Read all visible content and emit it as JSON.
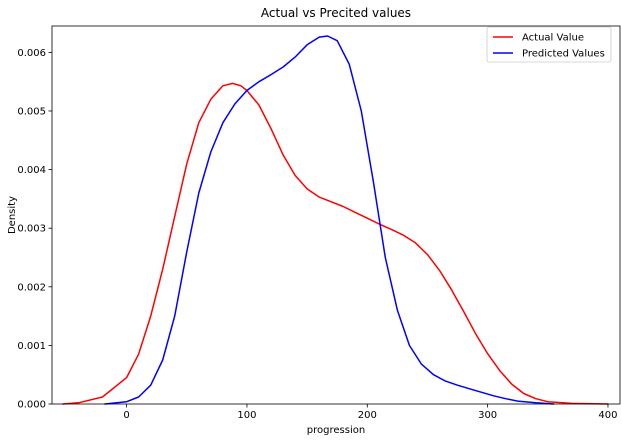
{
  "chart_data": {
    "type": "line",
    "title": "Actual vs Precited values",
    "xlabel": "progression",
    "ylabel": "Density",
    "xlim": [
      -62,
      410
    ],
    "ylim": [
      0,
      0.00645
    ],
    "x_ticks": [
      0,
      100,
      200,
      300,
      400
    ],
    "y_ticks": [
      0.0,
      0.001,
      0.002,
      0.003,
      0.004,
      0.005,
      0.006
    ],
    "y_tick_labels": [
      "0.000",
      "0.001",
      "0.002",
      "0.003",
      "0.004",
      "0.005",
      "0.006"
    ],
    "grid": false,
    "legend_position": "top-right",
    "series": [
      {
        "name": "Actual Value",
        "color": "#ff0000",
        "points": [
          [
            -53,
            0.0
          ],
          [
            -40,
            2e-05
          ],
          [
            -20,
            0.00012
          ],
          [
            0,
            0.00045
          ],
          [
            10,
            0.00085
          ],
          [
            20,
            0.0015
          ],
          [
            30,
            0.0023
          ],
          [
            40,
            0.0032
          ],
          [
            50,
            0.0041
          ],
          [
            60,
            0.0048
          ],
          [
            70,
            0.0052
          ],
          [
            80,
            0.00543
          ],
          [
            88,
            0.00547
          ],
          [
            95,
            0.00543
          ],
          [
            100,
            0.00535
          ],
          [
            110,
            0.0051
          ],
          [
            120,
            0.0047
          ],
          [
            130,
            0.00425
          ],
          [
            140,
            0.0039
          ],
          [
            150,
            0.00367
          ],
          [
            160,
            0.00353
          ],
          [
            170,
            0.00345
          ],
          [
            180,
            0.00337
          ],
          [
            190,
            0.00327
          ],
          [
            200,
            0.00317
          ],
          [
            210,
            0.00307
          ],
          [
            220,
            0.00298
          ],
          [
            230,
            0.00288
          ],
          [
            240,
            0.00275
          ],
          [
            250,
            0.00255
          ],
          [
            260,
            0.00228
          ],
          [
            270,
            0.00195
          ],
          [
            280,
            0.00158
          ],
          [
            290,
            0.0012
          ],
          [
            300,
            0.00086
          ],
          [
            310,
            0.00057
          ],
          [
            320,
            0.00034
          ],
          [
            330,
            0.00018
          ],
          [
            340,
            9e-05
          ],
          [
            350,
            4e-05
          ],
          [
            370,
            1e-05
          ],
          [
            400,
            0.0
          ]
        ]
      },
      {
        "name": "Predicted Values",
        "color": "#0000ff",
        "points": [
          [
            -18,
            0.0
          ],
          [
            0,
            4e-05
          ],
          [
            10,
            0.00012
          ],
          [
            20,
            0.00032
          ],
          [
            30,
            0.00075
          ],
          [
            40,
            0.0015
          ],
          [
            50,
            0.0026
          ],
          [
            60,
            0.0036
          ],
          [
            70,
            0.0043
          ],
          [
            80,
            0.0048
          ],
          [
            90,
            0.00512
          ],
          [
            100,
            0.00535
          ],
          [
            110,
            0.0055
          ],
          [
            120,
            0.00562
          ],
          [
            130,
            0.00575
          ],
          [
            140,
            0.00592
          ],
          [
            150,
            0.00613
          ],
          [
            160,
            0.00626
          ],
          [
            167,
            0.00628
          ],
          [
            175,
            0.0062
          ],
          [
            185,
            0.0058
          ],
          [
            195,
            0.005
          ],
          [
            205,
            0.0038
          ],
          [
            215,
            0.0025
          ],
          [
            225,
            0.0016
          ],
          [
            235,
            0.001
          ],
          [
            245,
            0.00068
          ],
          [
            255,
            0.0005
          ],
          [
            265,
            0.00039
          ],
          [
            275,
            0.00032
          ],
          [
            285,
            0.00026
          ],
          [
            295,
            0.0002
          ],
          [
            305,
            0.00014
          ],
          [
            315,
            9e-05
          ],
          [
            325,
            5e-05
          ],
          [
            340,
            2e-05
          ],
          [
            355,
            0.0
          ]
        ]
      }
    ]
  }
}
